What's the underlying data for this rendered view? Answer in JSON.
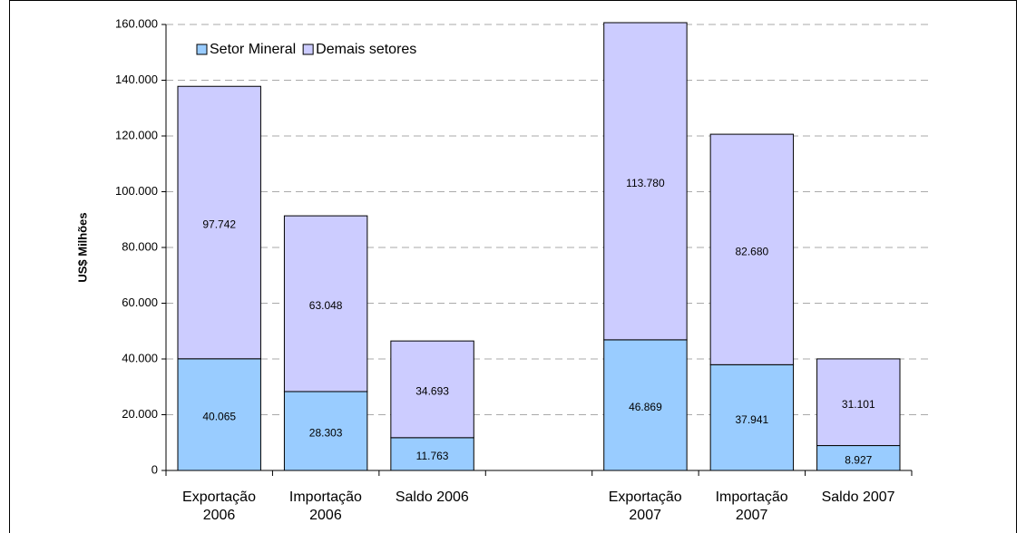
{
  "chart_data": {
    "type": "stacked_bar",
    "ylabel": "US$ Milhões",
    "categories": [
      "Exportação\n2006",
      "Importação\n2006",
      "Saldo 2006",
      null,
      "Exportação\n2007",
      "Importação\n2007",
      "Saldo 2007"
    ],
    "series": [
      {
        "name": "Setor Mineral",
        "color": "#99ccff",
        "values": [
          40065,
          28303,
          11763,
          null,
          46869,
          37941,
          8927
        ],
        "value_labels": [
          "40.065",
          "28.303",
          "11.763",
          null,
          "46.869",
          "37.941",
          "8.927"
        ]
      },
      {
        "name": "Demais setores",
        "color": "#ccccff",
        "values": [
          97742,
          63048,
          34693,
          null,
          113780,
          82680,
          31101
        ],
        "value_labels": [
          "97.742",
          "63.048",
          "34.693",
          null,
          "113.780",
          "82.680",
          "31.101"
        ]
      }
    ],
    "ylim": [
      0,
      160000
    ],
    "yticks": [
      0,
      {
        "value": 20000,
        "label": "20.000"
      },
      {
        "value": 40000,
        "label": "40.000"
      },
      {
        "value": 60000,
        "label": "60.000"
      },
      {
        "value": 80000,
        "label": "80.000"
      },
      {
        "value": 100000,
        "label": "100.000"
      },
      {
        "value": 120000,
        "label": "120.000"
      },
      {
        "value": 140000,
        "label": "140.000"
      },
      {
        "value": 160000,
        "label": "160.000"
      }
    ],
    "grid": true,
    "legend": "top-left"
  }
}
